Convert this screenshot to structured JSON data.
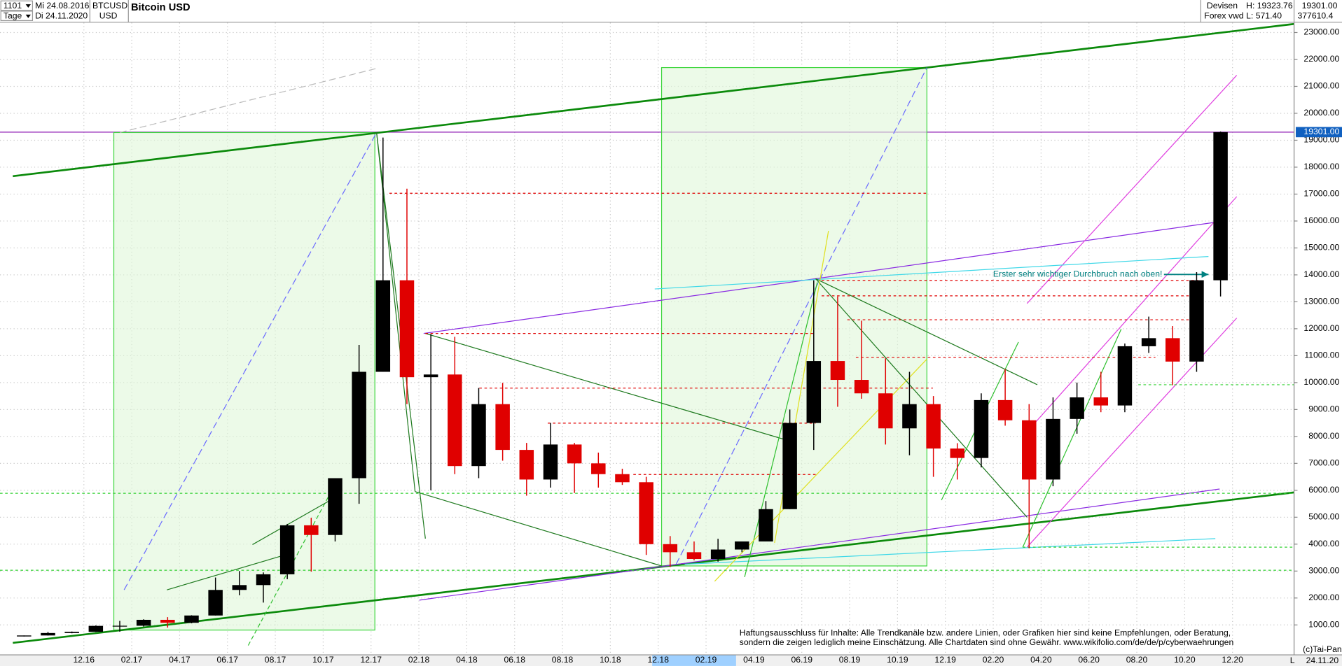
{
  "header": {
    "period": "1101",
    "from": "Mi 24.08.2016",
    "interval": "Tage",
    "to": "Di 24.11.2020",
    "symbol": "BTCUSD",
    "currency": "USD",
    "title": "Bitcoin USD",
    "market": "Devisen",
    "source": "Forex vwd",
    "high": "H: 19323.76",
    "low": "L: 571.40",
    "last": "19301.00",
    "volume": "377610.4",
    "copyright": "(c)Tai-Pan",
    "date": "24.11.20",
    "scale": "L"
  },
  "chart_data": {
    "type": "candlestick",
    "title": "Bitcoin USD",
    "categories": [
      null,
      null,
      null,
      "12.16",
      null,
      "02.17",
      null,
      "04.17",
      null,
      "06.17",
      null,
      "08.17",
      null,
      "10.17",
      null,
      "12.17",
      null,
      "02.18",
      null,
      "04.18",
      null,
      "06.18",
      null,
      "08.18",
      null,
      "10.18",
      null,
      "12.18",
      null,
      "02.19",
      null,
      "04.19",
      null,
      "06.19",
      null,
      "08.19",
      null,
      "10.19",
      null,
      "12.19",
      null,
      "02.20",
      null,
      "04.20",
      null,
      "06.20",
      null,
      "08.20",
      null,
      "10.20",
      null,
      "12.20"
    ],
    "series": [
      {
        "name": "BTCUSD",
        "up_color": "#000000",
        "down_color": "#e00000",
        "open": [
          572,
          609,
          700,
          745,
          965,
          970,
          1190,
          1080,
          1350,
          2300,
          2480,
          2880,
          4700,
          4340,
          6450,
          10400,
          13800,
          10200,
          10300,
          6900,
          9200,
          7500,
          6400,
          7700,
          7000,
          6600,
          6300,
          4000,
          3700,
          3450,
          3800,
          4100,
          5300,
          8500,
          10800,
          10100,
          9600,
          8300,
          9200,
          7550,
          7200,
          9350,
          8600,
          6400,
          8650,
          9450,
          9150,
          11350,
          11650,
          10780,
          13800,
          null
        ],
        "high": [
          609,
          740,
          755,
          980,
          1150,
          1210,
          1290,
          1360,
          2760,
          3000,
          2950,
          4750,
          4980,
          6450,
          11400,
          19100,
          17200,
          11800,
          11700,
          9800,
          9990,
          7760,
          8500,
          7760,
          7400,
          6800,
          6500,
          4300,
          4100,
          4200,
          4100,
          5600,
          9000,
          13800,
          13200,
          12300,
          10900,
          10400,
          9500,
          7750,
          9600,
          10500,
          9200,
          9450,
          10000,
          10400,
          11450,
          12450,
          12100,
          14100,
          19323.76,
          null
        ],
        "low": [
          571.4,
          605,
          690,
          740,
          750,
          940,
          900,
          1060,
          1350,
          2100,
          1830,
          2700,
          2980,
          4100,
          5500,
          10400,
          9200,
          6000,
          6600,
          6450,
          7100,
          5800,
          6100,
          5900,
          6100,
          6200,
          3600,
          3150,
          3400,
          3350,
          3700,
          4100,
          5300,
          7500,
          9100,
          9400,
          7700,
          7300,
          6500,
          6400,
          6850,
          8400,
          3850,
          6150,
          8100,
          8900,
          8900,
          11100,
          9900,
          10400,
          13200,
          null
        ],
        "close": [
          609,
          700,
          745,
          965,
          970,
          1190,
          1080,
          1350,
          2300,
          2480,
          2880,
          4700,
          4340,
          6450,
          10400,
          13800,
          10200,
          10300,
          6900,
          9200,
          7500,
          6400,
          7700,
          7000,
          6600,
          6300,
          4000,
          3700,
          3450,
          3800,
          4100,
          5300,
          8500,
          10800,
          10100,
          9600,
          8300,
          9200,
          7550,
          7200,
          9350,
          8600,
          6400,
          8650,
          9450,
          9150,
          11350,
          11650,
          10780,
          13800,
          19301,
          null
        ]
      }
    ],
    "ylim": [
      0,
      24000
    ],
    "yticks": [
      {
        "value": 1000,
        "label": "1000.00"
      },
      {
        "value": 2000,
        "label": "2000.00"
      },
      {
        "value": 3000,
        "label": "3000.00"
      },
      {
        "value": 4000,
        "label": "4000.00"
      },
      {
        "value": 5000,
        "label": "5000.00"
      },
      {
        "value": 6000,
        "label": "6000.00"
      },
      {
        "value": 7000,
        "label": "7000.00"
      },
      {
        "value": 8000,
        "label": "8000.00"
      },
      {
        "value": 9000,
        "label": "9000.00"
      },
      {
        "value": 10000,
        "label": "10000.00"
      },
      {
        "value": 11000,
        "label": "11000.00"
      },
      {
        "value": 12000,
        "label": "12000.00"
      },
      {
        "value": 13000,
        "label": "13000.00"
      },
      {
        "value": 14000,
        "label": "14000.00"
      },
      {
        "value": 15000,
        "label": "15000.00"
      },
      {
        "value": 16000,
        "label": "16000.00"
      },
      {
        "value": 17000,
        "label": "17000.00"
      },
      {
        "value": 18000,
        "label": "18000.00"
      },
      {
        "value": 19000,
        "label": "19000.00"
      },
      {
        "value": 20000,
        "label": "20000.00"
      },
      {
        "value": 21000,
        "label": "21000.00"
      },
      {
        "value": 22000,
        "label": "22000.00"
      },
      {
        "value": 23000,
        "label": "23000.00"
      }
    ],
    "last_price": {
      "value": 19301,
      "label": "19301.00"
    },
    "grid": true,
    "annotations": [
      "Erster sehr wichtiger Durchbruch nach oben!",
      "Haftungsausschluss für Inhalte: Alle Trendkanäle bzw. andere Linien, oder Grafiken hier sind keine Empfehlungen, oder Beratung,",
      "sondern die zeigen lediglich meine  Einschätzung. Alle Chartdaten sind ohne Gewähr.  www.wikifolio.com/de/de/p/cyberwaehrungen"
    ]
  }
}
